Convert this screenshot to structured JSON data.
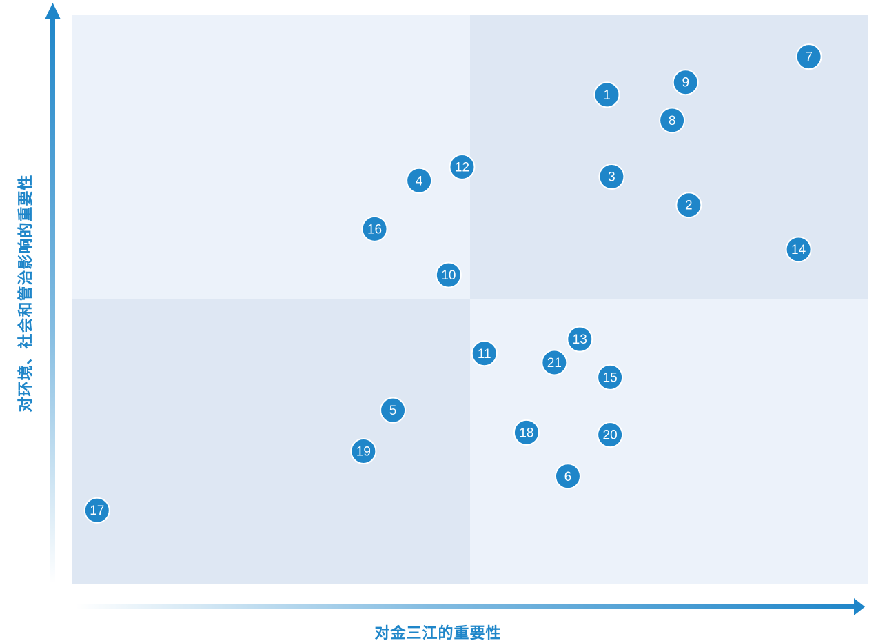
{
  "chart_data": {
    "type": "scatter",
    "title": "",
    "xlabel": "对金三江的重要性",
    "ylabel": "对环境、社会和管治影响的重要性",
    "xlim": [
      0,
      100
    ],
    "ylim": [
      0,
      100
    ],
    "quadrant_split": {
      "x": 50,
      "y": 50
    },
    "grid": false,
    "points": [
      {
        "label": "1",
        "x": 67.2,
        "y": 86.0
      },
      {
        "label": "2",
        "x": 77.5,
        "y": 66.6
      },
      {
        "label": "3",
        "x": 67.8,
        "y": 71.6
      },
      {
        "label": "4",
        "x": 43.6,
        "y": 70.9
      },
      {
        "label": "5",
        "x": 40.3,
        "y": 30.5
      },
      {
        "label": "6",
        "x": 62.3,
        "y": 18.9
      },
      {
        "label": "7",
        "x": 92.6,
        "y": 92.7
      },
      {
        "label": "8",
        "x": 75.4,
        "y": 81.5
      },
      {
        "label": "9",
        "x": 77.1,
        "y": 88.2
      },
      {
        "label": "10",
        "x": 47.3,
        "y": 54.3
      },
      {
        "label": "11",
        "x": 51.8,
        "y": 40.5
      },
      {
        "label": "12",
        "x": 49.0,
        "y": 73.3
      },
      {
        "label": "13",
        "x": 63.8,
        "y": 43.0
      },
      {
        "label": "14",
        "x": 91.3,
        "y": 58.8
      },
      {
        "label": "15",
        "x": 67.6,
        "y": 36.3
      },
      {
        "label": "16",
        "x": 38.0,
        "y": 62.4
      },
      {
        "label": "17",
        "x": 3.1,
        "y": 12.9
      },
      {
        "label": "18",
        "x": 57.1,
        "y": 26.6
      },
      {
        "label": "19",
        "x": 36.6,
        "y": 23.3
      },
      {
        "label": "20",
        "x": 67.6,
        "y": 26.2
      },
      {
        "label": "21",
        "x": 60.6,
        "y": 38.9
      }
    ],
    "colors": {
      "marker": "#1f86c9",
      "marker_border": "#ffffff",
      "quadrant_light": "#ecf2fa",
      "quadrant_dark": "#dee7f3",
      "axis": "#1f86c9"
    }
  }
}
